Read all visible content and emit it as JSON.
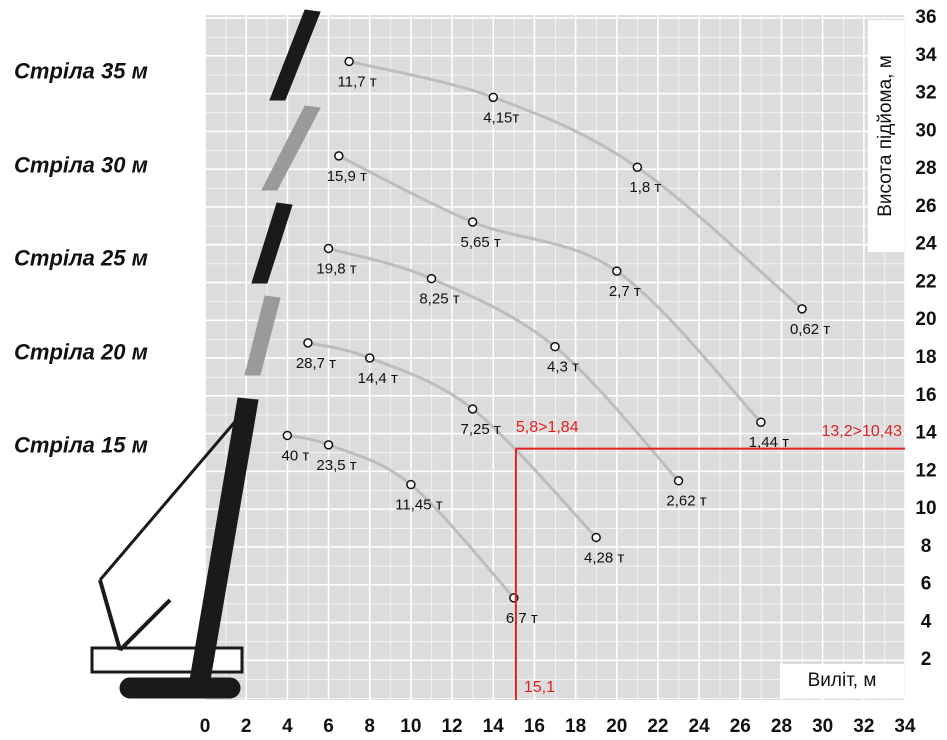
{
  "chart_data": {
    "type": "line",
    "x_label": "Виліт, м",
    "y_label": "Висота підйома, м",
    "xlim": [
      0,
      34
    ],
    "ylim": [
      0,
      36
    ],
    "xticks": [
      0,
      2,
      4,
      6,
      8,
      10,
      12,
      14,
      16,
      18,
      20,
      22,
      24,
      26,
      28,
      30,
      32,
      34
    ],
    "yticks": [
      2,
      4,
      6,
      8,
      10,
      12,
      14,
      16,
      18,
      20,
      22,
      24,
      26,
      28,
      30,
      32,
      34,
      36
    ],
    "grid": true,
    "series": [
      {
        "name": "Стріла 35 м",
        "color": "#bdbdbd",
        "x": [
          7,
          14,
          21,
          29
        ],
        "values": [
          33.7,
          31.8,
          28.1,
          20.6
        ],
        "labels": [
          "11,7 т",
          "4,15т",
          "1,8 т",
          "0,62 т"
        ]
      },
      {
        "name": "Стріла 30 м",
        "color": "#bdbdbd",
        "x": [
          6.5,
          13,
          20,
          27
        ],
        "values": [
          28.7,
          25.2,
          22.6,
          14.6
        ],
        "labels": [
          "15,9 т",
          "5,65 т",
          "2,7 т",
          "1,44 т"
        ]
      },
      {
        "name": "Стріла 25 м",
        "color": "#bdbdbd",
        "x": [
          6,
          11,
          17,
          23
        ],
        "values": [
          23.8,
          22.2,
          18.6,
          11.5
        ],
        "labels": [
          "19,8 т",
          "8,25 т",
          "4,3 т",
          "2,62 т"
        ]
      },
      {
        "name": "Стріла 20 м",
        "color": "#bdbdbd",
        "x": [
          5,
          8,
          13,
          19
        ],
        "values": [
          18.8,
          18,
          15.3,
          8.5
        ],
        "labels": [
          "28,7 т",
          "14,4 т",
          "7,25 т",
          "4,28 т"
        ]
      },
      {
        "name": "Стріла 15 м",
        "color": "#bdbdbd",
        "x": [
          4,
          6,
          10,
          15
        ],
        "values": [
          13.9,
          13.4,
          11.3,
          5.3
        ],
        "labels": [
          "40 т",
          "23,5 т",
          "11,45 т",
          "6,7 т"
        ]
      }
    ],
    "reference": {
      "x": 15.1,
      "y": 13.2,
      "x_label": "15,1",
      "y_label": "13,2>10,43",
      "label": "5,8>1,84",
      "color": "#e02020"
    }
  }
}
